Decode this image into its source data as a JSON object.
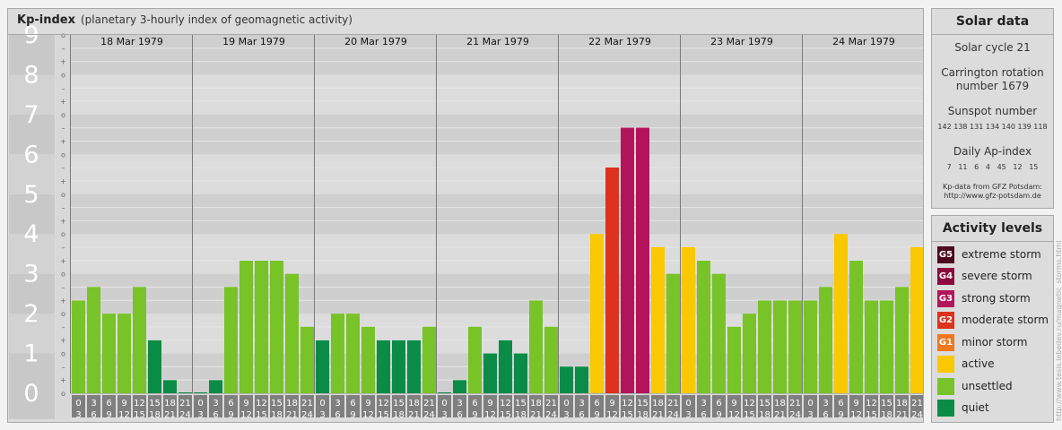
{
  "header": {
    "title": "Kp-index",
    "subtitle": "(planetary 3-hourly index of geomagnetic activity)"
  },
  "chart_data": {
    "type": "bar",
    "title": "Kp-index",
    "subtitle": "(planetary 3-hourly index of geomagnetic activity)",
    "ylim": [
      0,
      9
    ],
    "y_ticks": [
      "0",
      "1",
      "2",
      "3",
      "4",
      "5",
      "6",
      "7",
      "8",
      "9"
    ],
    "minor_tick_labels": [
      "o",
      "+",
      "–"
    ],
    "days": [
      "18 Mar 1979",
      "19 Mar 1979",
      "20 Mar 1979",
      "21 Mar 1979",
      "22 Mar 1979",
      "23 Mar 1979",
      "24 Mar 1979"
    ],
    "interval_labels": [
      [
        "0",
        "3"
      ],
      [
        "3",
        "6"
      ],
      [
        "6",
        "9"
      ],
      [
        "9",
        "12"
      ],
      [
        "12",
        "15"
      ],
      [
        "15",
        "18"
      ],
      [
        "18",
        "21"
      ],
      [
        "21",
        "24"
      ]
    ],
    "values": [
      [
        2.33,
        2.67,
        2.0,
        2.0,
        2.67,
        1.33,
        0.33,
        0.0
      ],
      [
        0.0,
        0.33,
        2.67,
        3.33,
        3.33,
        3.33,
        3.0,
        1.67
      ],
      [
        1.33,
        2.0,
        2.0,
        1.67,
        1.33,
        1.33,
        1.33,
        1.67
      ],
      [
        0.0,
        0.33,
        1.67,
        1.0,
        1.33,
        1.0,
        2.33,
        1.67
      ],
      [
        0.67,
        0.67,
        4.0,
        5.67,
        6.67,
        6.67,
        3.67,
        3.0
      ],
      [
        3.67,
        3.33,
        3.0,
        1.67,
        2.0,
        2.33,
        2.33,
        2.33
      ],
      [
        2.33,
        2.67,
        4.0,
        3.33,
        2.33,
        2.33,
        2.67,
        3.67
      ]
    ],
    "grid": true,
    "legend": "right"
  },
  "solar": {
    "title": "Solar data",
    "cycle": "Solar cycle 21",
    "carrington_line1": "Carrington rotation",
    "carrington_line2": "number 1679",
    "sunspot_label": "Sunspot number",
    "sunspot_values": "142 138 131 134 140 139 118",
    "ap_label": "Daily Ap-index",
    "ap_values": "7   11   6   4   45   12   15",
    "source_line1": "Kp-data from GFZ Potsdam:",
    "source_line2": "http://www.gfz-potsdam.de"
  },
  "levels": {
    "title": "Activity levels",
    "items": [
      {
        "badge": "G5",
        "label": "extreme storm",
        "color": "#4b0a1e"
      },
      {
        "badge": "G4",
        "label": "severe storm",
        "color": "#8c0a3c"
      },
      {
        "badge": "G3",
        "label": "strong storm",
        "color": "#b4145a"
      },
      {
        "badge": "G2",
        "label": "moderate storm",
        "color": "#dc321e"
      },
      {
        "badge": "G1",
        "label": "minor storm",
        "color": "#f0781e"
      },
      {
        "badge": "",
        "label": "active",
        "color": "#fac800"
      },
      {
        "badge": "",
        "label": "unsettled",
        "color": "#78c328"
      },
      {
        "badge": "",
        "label": "quiet",
        "color": "#0a8c46"
      }
    ]
  },
  "watermark": "http://www.tesis.lebedev.ru/magnetic_storms.html"
}
